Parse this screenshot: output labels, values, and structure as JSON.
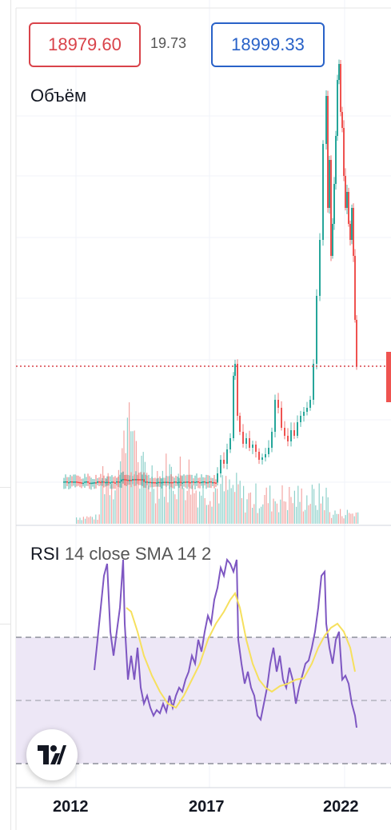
{
  "header": {
    "price_low": "18979.60",
    "price_diff": "19.73",
    "price_high": "18999.33",
    "price_low_color": "#d9434a",
    "price_high_color": "#2962c8"
  },
  "volume_pane": {
    "label": "Объём"
  },
  "rsi_pane": {
    "name": "RSI",
    "params": "14 close SMA 14 2"
  },
  "x_axis": {
    "ticks": [
      "2012",
      "2017",
      "2022"
    ]
  },
  "colors": {
    "up": "#26a69a",
    "down": "#ef5350",
    "rsi_line": "#7e57c2",
    "rsi_sma": "#f6e05e",
    "rsi_band": "#ede7f6",
    "current_price_line": "#d9434a"
  },
  "logo": {
    "icon": "tradingview-logo-icon"
  }
}
